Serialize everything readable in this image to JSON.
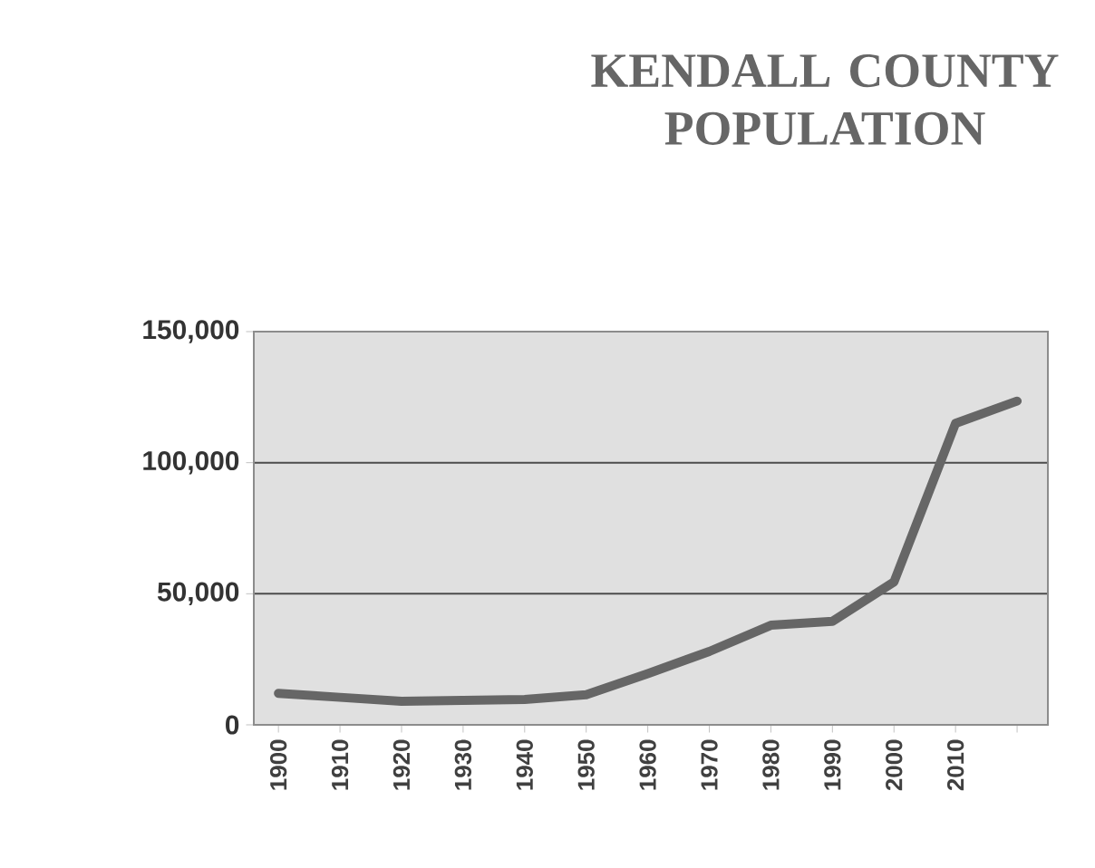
{
  "chart_data": {
    "type": "line",
    "title": "KENDALL COUNTY POPULATION",
    "categories": [
      "1900",
      "1910",
      "1920",
      "1930",
      "1940",
      "1950",
      "1960",
      "1970",
      "1980",
      "1990",
      "2000",
      "2010",
      null
    ],
    "series": [
      {
        "color": "#666666",
        "values": [
          12000,
          10500,
          9000,
          9300,
          9700,
          11500,
          19500,
          28000,
          38000,
          39500,
          54500,
          115000,
          123500
        ]
      }
    ],
    "ylim": [
      0,
      150000
    ],
    "yticks": [
      {
        "value": 0,
        "label": "0"
      },
      {
        "value": 50000,
        "label": "50,000"
      },
      {
        "value": 100000,
        "label": "100,000"
      },
      {
        "value": 150000,
        "label": "150,000"
      }
    ],
    "grid": "y",
    "marker": "none",
    "line_style": "solid"
  }
}
